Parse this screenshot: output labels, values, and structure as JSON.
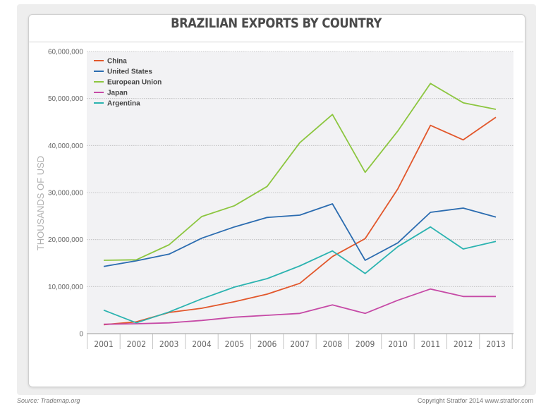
{
  "chart_data": {
    "type": "line",
    "title": "BRAZILIAN EXPORTS BY COUNTRY",
    "xlabel": "",
    "ylabel": "THOUSANDS OF USD",
    "x": [
      "2001",
      "2002",
      "2003",
      "2004",
      "2005",
      "2006",
      "2007",
      "2008",
      "2009",
      "2010",
      "2011",
      "2012",
      "2013"
    ],
    "ylim": [
      0,
      60000000
    ],
    "yticks": [
      "0",
      "10,000,000",
      "20,000,000",
      "30,000,000",
      "40,000,000",
      "50,000,000",
      "60,000,000"
    ],
    "ytick_values": [
      0,
      10000000,
      20000000,
      30000000,
      40000000,
      50000000,
      60000000
    ],
    "grid": true,
    "legend_position": "top-left",
    "series": [
      {
        "name": "China",
        "color": "#e2572b",
        "values": [
          1900000,
          2500000,
          4500000,
          5400000,
          6800000,
          8400000,
          10700000,
          16400000,
          20200000,
          30800000,
          44300000,
          41200000,
          46000000
        ]
      },
      {
        "name": "United States",
        "color": "#2b6cb0",
        "values": [
          14300000,
          15500000,
          16900000,
          20300000,
          22700000,
          24700000,
          25200000,
          27600000,
          15600000,
          19300000,
          25800000,
          26700000,
          24800000
        ]
      },
      {
        "name": "European Union",
        "color": "#8cc63f",
        "values": [
          15600000,
          15700000,
          18900000,
          24900000,
          27200000,
          31300000,
          40600000,
          46600000,
          34300000,
          43100000,
          53200000,
          49100000,
          47700000
        ]
      },
      {
        "name": "Japan",
        "color": "#c64aa6",
        "values": [
          2000000,
          2100000,
          2300000,
          2800000,
          3500000,
          3900000,
          4300000,
          6100000,
          4300000,
          7100000,
          9500000,
          7900000,
          7900000
        ]
      },
      {
        "name": "Argentina",
        "color": "#2bb3b0",
        "values": [
          5000000,
          2300000,
          4600000,
          7400000,
          9900000,
          11700000,
          14400000,
          17600000,
          12800000,
          18500000,
          22700000,
          18000000,
          19600000
        ]
      }
    ]
  },
  "footer": {
    "source": "Source: Trademap.org",
    "credit": "Copyright Stratfor 2014   www.stratfor.com"
  }
}
